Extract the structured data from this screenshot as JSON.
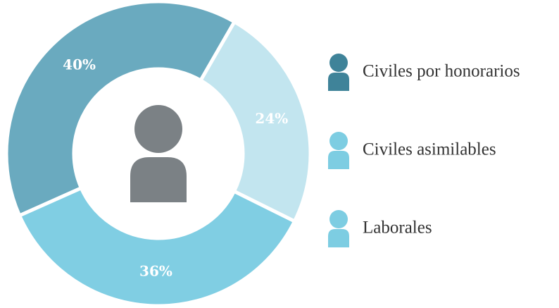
{
  "chart_data": {
    "type": "donut",
    "categories": [
      "Civiles por honorarios",
      "Civiles asimilables",
      "Laborales"
    ],
    "values": [
      40,
      24,
      36
    ],
    "value_labels": [
      "40%",
      "24%",
      "36%"
    ],
    "colors": [
      "#6aaabf",
      "#c2e5ef",
      "#80cee3"
    ],
    "legend_colors": [
      "#3f8399",
      "#7dcde2",
      "#7dcde2"
    ],
    "legend": "right"
  }
}
